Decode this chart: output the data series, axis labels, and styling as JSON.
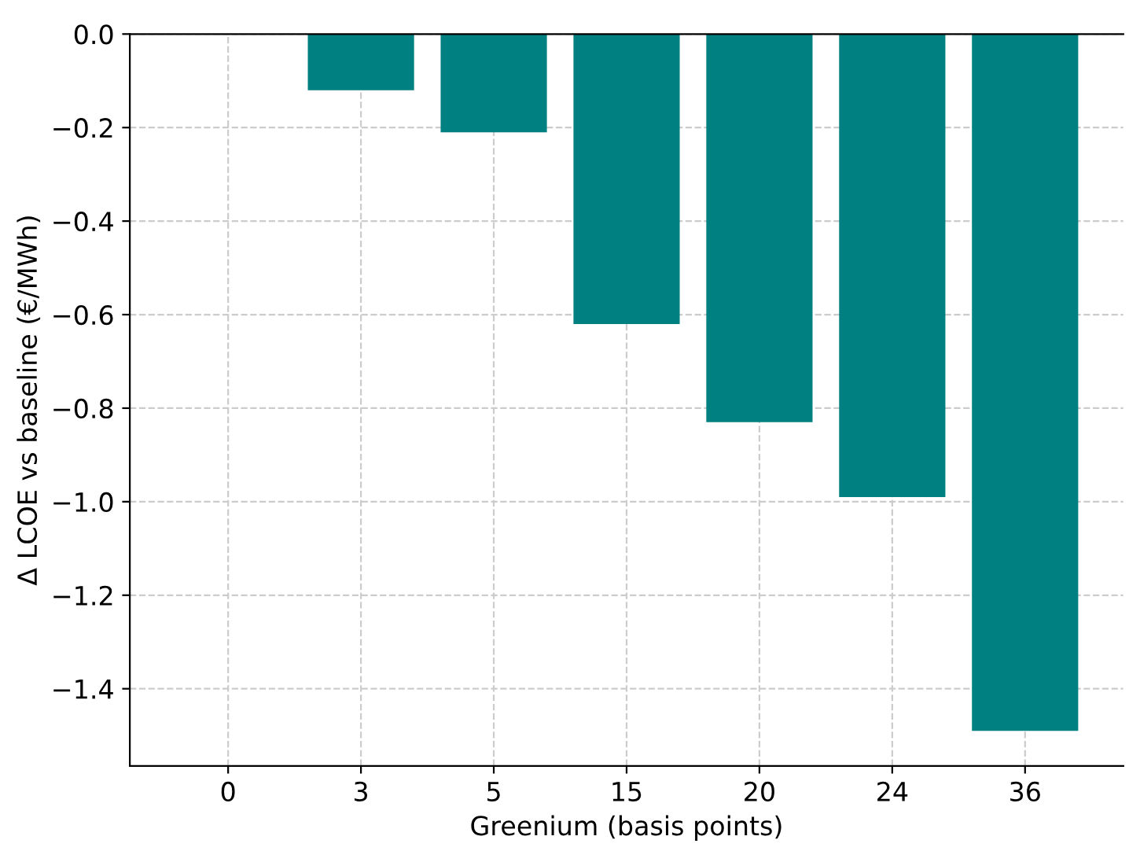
{
  "chart_data": {
    "type": "bar",
    "xlabel": "Greenium (basis points)",
    "ylabel": "Δ LCOE vs baseline (€/MWh)",
    "categories": [
      "0",
      "3",
      "5",
      "15",
      "20",
      "24",
      "36"
    ],
    "values": [
      0,
      -0.12,
      -0.21,
      -0.62,
      -0.83,
      -0.99,
      -1.49
    ],
    "color": "#008080",
    "ylim": [
      -1.565,
      0
    ],
    "yticks": [
      {
        "value": 0,
        "label": "0.0"
      },
      {
        "value": -0.2,
        "label": "−0.2"
      },
      {
        "value": -0.4,
        "label": "−0.4"
      },
      {
        "value": -0.6,
        "label": "−0.6"
      },
      {
        "value": -0.8,
        "label": "−0.8"
      },
      {
        "value": -1.0,
        "label": "−1.0"
      },
      {
        "value": -1.2,
        "label": "−1.2"
      },
      {
        "value": -1.4,
        "label": "−1.4"
      }
    ],
    "grid": true,
    "line_style": "dashed"
  }
}
